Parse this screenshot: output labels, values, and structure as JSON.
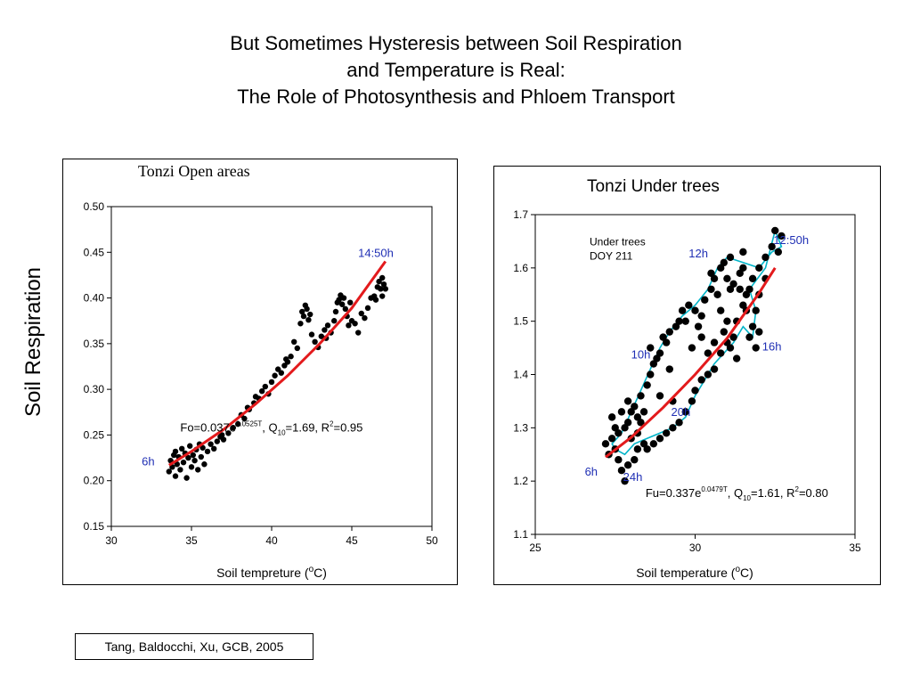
{
  "slide": {
    "title_lines": [
      "But Sometimes Hysteresis between Soil Respiration",
      "and Temperature is Real:",
      "The Role of Photosynthesis and Phloem Transport"
    ],
    "y_axis_label": "Soil Respiration",
    "citation": "Tang, Baldocchi, Xu, GCB, 2005"
  },
  "colors": {
    "points": "#000000",
    "fit_line": "#e31a1c",
    "time_labels": "#1f2fb4",
    "loop_line": "#00b4c8"
  },
  "chart_data": [
    {
      "type": "scatter",
      "title": "Tonzi Open areas",
      "xlabel": "Soil tempreture (oC)",
      "xlim": [
        30,
        50
      ],
      "ylim": [
        0.15,
        0.5
      ],
      "x_ticks": [
        30,
        35,
        40,
        45,
        50
      ],
      "y_ticks": [
        0.15,
        0.2,
        0.25,
        0.3,
        0.35,
        0.4,
        0.45,
        0.5
      ],
      "y_tick_labels": [
        "0.15",
        "0.20",
        "0.25",
        "0.30",
        "0.35",
        "0.40",
        "0.45",
        "0.50"
      ],
      "points": [
        [
          33.6,
          0.21
        ],
        [
          33.7,
          0.222
        ],
        [
          33.8,
          0.215
        ],
        [
          33.9,
          0.228
        ],
        [
          34.0,
          0.205
        ],
        [
          34.0,
          0.232
        ],
        [
          34.1,
          0.218
        ],
        [
          34.2,
          0.226
        ],
        [
          34.3,
          0.212
        ],
        [
          34.4,
          0.235
        ],
        [
          34.5,
          0.22
        ],
        [
          34.6,
          0.23
        ],
        [
          34.7,
          0.203
        ],
        [
          34.8,
          0.225
        ],
        [
          34.9,
          0.238
        ],
        [
          35.0,
          0.215
        ],
        [
          35.1,
          0.228
        ],
        [
          35.2,
          0.222
        ],
        [
          35.3,
          0.234
        ],
        [
          35.4,
          0.212
        ],
        [
          35.5,
          0.24
        ],
        [
          35.6,
          0.226
        ],
        [
          35.7,
          0.236
        ],
        [
          35.8,
          0.218
        ],
        [
          36.0,
          0.232
        ],
        [
          36.2,
          0.24
        ],
        [
          36.4,
          0.235
        ],
        [
          36.6,
          0.243
        ],
        [
          36.8,
          0.248
        ],
        [
          37.0,
          0.245
        ],
        [
          37.3,
          0.252
        ],
        [
          37.6,
          0.258
        ],
        [
          37.9,
          0.262
        ],
        [
          38.1,
          0.272
        ],
        [
          38.3,
          0.268
        ],
        [
          38.6,
          0.278
        ],
        [
          38.9,
          0.285
        ],
        [
          39.2,
          0.29
        ],
        [
          39.4,
          0.298
        ],
        [
          39.6,
          0.303
        ],
        [
          39.8,
          0.295
        ],
        [
          40.0,
          0.308
        ],
        [
          40.2,
          0.315
        ],
        [
          40.4,
          0.322
        ],
        [
          40.6,
          0.318
        ],
        [
          40.8,
          0.326
        ],
        [
          41.0,
          0.33
        ],
        [
          41.2,
          0.336
        ],
        [
          41.4,
          0.352
        ],
        [
          41.6,
          0.345
        ],
        [
          41.8,
          0.372
        ],
        [
          41.9,
          0.385
        ],
        [
          42.0,
          0.38
        ],
        [
          42.1,
          0.392
        ],
        [
          42.2,
          0.388
        ],
        [
          42.3,
          0.376
        ],
        [
          42.4,
          0.382
        ],
        [
          42.5,
          0.36
        ],
        [
          42.7,
          0.352
        ],
        [
          42.9,
          0.346
        ],
        [
          43.1,
          0.358
        ],
        [
          43.3,
          0.365
        ],
        [
          43.5,
          0.37
        ],
        [
          43.7,
          0.362
        ],
        [
          43.9,
          0.375
        ],
        [
          44.0,
          0.385
        ],
        [
          44.2,
          0.398
        ],
        [
          44.3,
          0.403
        ],
        [
          44.4,
          0.393
        ],
        [
          44.5,
          0.4
        ],
        [
          44.6,
          0.388
        ],
        [
          44.7,
          0.38
        ],
        [
          44.8,
          0.37
        ],
        [
          44.9,
          0.395
        ],
        [
          45.0,
          0.375
        ],
        [
          45.2,
          0.372
        ],
        [
          45.4,
          0.362
        ],
        [
          45.6,
          0.383
        ],
        [
          45.8,
          0.378
        ],
        [
          46.0,
          0.389
        ],
        [
          46.2,
          0.4
        ],
        [
          46.4,
          0.402
        ],
        [
          46.6,
          0.412
        ],
        [
          46.7,
          0.418
        ],
        [
          46.8,
          0.41
        ],
        [
          46.9,
          0.422
        ],
        [
          47.0,
          0.415
        ],
        [
          47.1,
          0.41
        ],
        [
          46.5,
          0.398
        ],
        [
          46.9,
          0.402
        ],
        [
          44.1,
          0.395
        ],
        [
          38.5,
          0.28
        ],
        [
          39.0,
          0.292
        ],
        [
          40.9,
          0.333
        ],
        [
          43.4,
          0.356
        ],
        [
          36.9,
          0.25
        ]
      ],
      "fit_line": [
        [
          33.6,
          0.217
        ],
        [
          35.0,
          0.232
        ],
        [
          37.0,
          0.256
        ],
        [
          39.0,
          0.284
        ],
        [
          41.0,
          0.315
        ],
        [
          43.0,
          0.35
        ],
        [
          45.0,
          0.389
        ],
        [
          47.1,
          0.44
        ]
      ],
      "annotations": [
        {
          "text": "14:50h",
          "x": 46.5,
          "y": 0.445,
          "color": "time_labels"
        },
        {
          "text": "6h",
          "x": 32.3,
          "y": 0.217,
          "color": "time_labels"
        }
      ],
      "equation": {
        "base": "Fo=0.037e",
        "exp": "0.0525T",
        "mid1": ", Q",
        "sub": "10",
        "mid2": "=1.69, R",
        "sup2": "2",
        "tail": "=0.95"
      },
      "equation_anchor": {
        "x": 34.3,
        "y": 0.254
      }
    },
    {
      "type": "scatter",
      "title": "Tonzi Under trees",
      "xlabel": "Soil temperature (oC)",
      "xlim": [
        25,
        35
      ],
      "ylim": [
        1.1,
        1.7
      ],
      "x_ticks": [
        25,
        30,
        35
      ],
      "y_ticks": [
        1.1,
        1.2,
        1.3,
        1.4,
        1.5,
        1.6,
        1.7
      ],
      "y_tick_labels": [
        "1.1",
        "1.2",
        "1.3",
        "1.4",
        "1.5",
        "1.6",
        "1.7"
      ],
      "inset_text": [
        "Under trees",
        "DOY 211"
      ],
      "points": [
        [
          27.3,
          1.25
        ],
        [
          27.2,
          1.27
        ],
        [
          27.4,
          1.28
        ],
        [
          27.5,
          1.26
        ],
        [
          27.6,
          1.24
        ],
        [
          27.7,
          1.22
        ],
        [
          27.8,
          1.2
        ],
        [
          27.6,
          1.29
        ],
        [
          27.8,
          1.3
        ],
        [
          27.7,
          1.33
        ],
        [
          27.9,
          1.35
        ],
        [
          28.1,
          1.34
        ],
        [
          28.2,
          1.32
        ],
        [
          28.3,
          1.31
        ],
        [
          28.0,
          1.28
        ],
        [
          28.2,
          1.26
        ],
        [
          28.3,
          1.36
        ],
        [
          28.5,
          1.38
        ],
        [
          28.6,
          1.4
        ],
        [
          28.7,
          1.42
        ],
        [
          28.9,
          1.44
        ],
        [
          29.1,
          1.46
        ],
        [
          29.2,
          1.48
        ],
        [
          29.5,
          1.5
        ],
        [
          29.6,
          1.52
        ],
        [
          29.8,
          1.53
        ],
        [
          30.0,
          1.52
        ],
        [
          30.3,
          1.54
        ],
        [
          30.5,
          1.56
        ],
        [
          30.6,
          1.58
        ],
        [
          30.8,
          1.6
        ],
        [
          30.9,
          1.61
        ],
        [
          31.0,
          1.58
        ],
        [
          31.1,
          1.62
        ],
        [
          30.7,
          1.55
        ],
        [
          30.8,
          1.52
        ],
        [
          31.0,
          1.5
        ],
        [
          31.2,
          1.57
        ],
        [
          31.4,
          1.59
        ],
        [
          31.5,
          1.6
        ],
        [
          31.6,
          1.55
        ],
        [
          31.8,
          1.58
        ],
        [
          32.0,
          1.6
        ],
        [
          32.2,
          1.62
        ],
        [
          32.4,
          1.64
        ],
        [
          32.5,
          1.67
        ],
        [
          32.7,
          1.66
        ],
        [
          32.6,
          1.63
        ],
        [
          32.0,
          1.55
        ],
        [
          31.9,
          1.52
        ],
        [
          31.8,
          1.49
        ],
        [
          31.7,
          1.47
        ],
        [
          31.9,
          1.45
        ],
        [
          32.0,
          1.48
        ],
        [
          31.7,
          1.56
        ],
        [
          31.5,
          1.53
        ],
        [
          31.3,
          1.5
        ],
        [
          31.2,
          1.47
        ],
        [
          31.0,
          1.46
        ],
        [
          30.8,
          1.44
        ],
        [
          30.6,
          1.41
        ],
        [
          30.4,
          1.4
        ],
        [
          30.2,
          1.39
        ],
        [
          30.0,
          1.37
        ],
        [
          29.9,
          1.35
        ],
        [
          29.7,
          1.33
        ],
        [
          29.5,
          1.31
        ],
        [
          29.3,
          1.3
        ],
        [
          29.1,
          1.29
        ],
        [
          28.9,
          1.28
        ],
        [
          28.7,
          1.27
        ],
        [
          28.5,
          1.26
        ],
        [
          28.4,
          1.27
        ],
        [
          28.2,
          1.29
        ],
        [
          28.1,
          1.24
        ],
        [
          27.9,
          1.23
        ],
        [
          28.0,
          1.33
        ],
        [
          27.5,
          1.3
        ],
        [
          27.4,
          1.32
        ],
        [
          28.8,
          1.43
        ],
        [
          29.0,
          1.47
        ],
        [
          28.6,
          1.45
        ],
        [
          29.4,
          1.49
        ],
        [
          29.7,
          1.5
        ],
        [
          30.1,
          1.49
        ],
        [
          30.2,
          1.47
        ],
        [
          29.9,
          1.45
        ],
        [
          30.4,
          1.44
        ],
        [
          30.6,
          1.46
        ],
        [
          30.9,
          1.48
        ],
        [
          31.1,
          1.45
        ],
        [
          31.3,
          1.43
        ],
        [
          31.6,
          1.52
        ],
        [
          32.2,
          1.58
        ],
        [
          31.4,
          1.56
        ],
        [
          30.5,
          1.59
        ],
        [
          31.5,
          1.63
        ],
        [
          31.1,
          1.56
        ],
        [
          30.2,
          1.51
        ],
        [
          29.2,
          1.41
        ],
        [
          28.9,
          1.36
        ],
        [
          29.3,
          1.35
        ],
        [
          28.4,
          1.33
        ],
        [
          27.9,
          1.31
        ]
      ],
      "loop_path": [
        [
          27.5,
          1.26
        ],
        [
          27.8,
          1.25
        ],
        [
          28.1,
          1.27
        ],
        [
          28.5,
          1.28
        ],
        [
          28.9,
          1.29
        ],
        [
          29.3,
          1.3
        ],
        [
          29.7,
          1.32
        ],
        [
          30.0,
          1.36
        ],
        [
          30.3,
          1.39
        ],
        [
          30.6,
          1.42
        ],
        [
          30.9,
          1.44
        ],
        [
          31.2,
          1.46
        ],
        [
          31.5,
          1.49
        ],
        [
          31.8,
          1.47
        ],
        [
          31.9,
          1.52
        ],
        [
          31.7,
          1.56
        ],
        [
          32.2,
          1.6
        ],
        [
          32.5,
          1.67
        ],
        [
          32.7,
          1.64
        ],
        [
          32.4,
          1.63
        ],
        [
          32.0,
          1.6
        ],
        [
          31.5,
          1.61
        ],
        [
          31.0,
          1.62
        ],
        [
          30.7,
          1.6
        ],
        [
          30.4,
          1.56
        ],
        [
          30.0,
          1.53
        ],
        [
          29.6,
          1.51
        ],
        [
          29.2,
          1.48
        ],
        [
          28.9,
          1.45
        ],
        [
          28.6,
          1.41
        ],
        [
          28.3,
          1.37
        ],
        [
          28.0,
          1.33
        ],
        [
          27.7,
          1.29
        ],
        [
          27.4,
          1.27
        ],
        [
          27.5,
          1.26
        ]
      ],
      "fit_line": [
        [
          27.2,
          1.245
        ],
        [
          28.0,
          1.282
        ],
        [
          29.0,
          1.338
        ],
        [
          30.0,
          1.4
        ],
        [
          31.0,
          1.468
        ],
        [
          32.0,
          1.553
        ],
        [
          32.5,
          1.6
        ]
      ],
      "annotations": [
        {
          "text": "12h",
          "x": 30.1,
          "y": 1.62,
          "color": "time_labels"
        },
        {
          "text": "12:50h",
          "x": 33.0,
          "y": 1.645,
          "color": "time_labels"
        },
        {
          "text": "10h",
          "x": 28.3,
          "y": 1.43,
          "color": "time_labels"
        },
        {
          "text": "16h",
          "x": 32.4,
          "y": 1.445,
          "color": "time_labels"
        },
        {
          "text": "20h",
          "x": 29.55,
          "y": 1.322,
          "color": "time_labels"
        },
        {
          "text": "6h",
          "x": 26.75,
          "y": 1.21,
          "color": "time_labels"
        },
        {
          "text": "24h",
          "x": 28.05,
          "y": 1.2,
          "color": "time_labels"
        }
      ],
      "equation": {
        "base": "Fu=0.337e",
        "exp": "0.0479T",
        "mid1": ", Q",
        "sub": "10",
        "mid2": "=1.61, R",
        "sup2": "2",
        "tail": "=0.80"
      },
      "equation_anchor": {
        "x": 28.45,
        "y": 1.17
      }
    }
  ]
}
